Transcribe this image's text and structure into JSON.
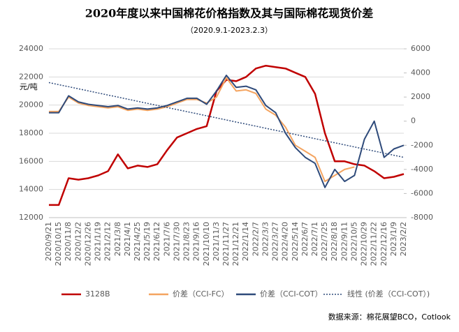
{
  "chart_data": {
    "type": "line",
    "title": "2020年度以来中国棉花价格指数及其与国际棉花现货价差",
    "subtitle": "（2020.9.1-2023.2.3）",
    "y_label": "元/吨",
    "source": "数据来源：棉花展望BCO，Cotlook",
    "categories": [
      "2020/9/21",
      "2020/10/15",
      "2020/11/8",
      "2020/12/2",
      "2020/12/26",
      "2021/1/19",
      "2021/2/12",
      "2021/3/8",
      "2021/4/1",
      "2021/4/25",
      "2021/5/19",
      "2021/6/12",
      "2021/7/6",
      "2021/7/30",
      "2021/8/23",
      "2021/9/16",
      "2021/10/10",
      "2021/11/3",
      "2021/11/27",
      "2021/12/21",
      "2022/1/14",
      "2022/2/7",
      "2022/3/3",
      "2022/3/27",
      "2022/4/20",
      "2022/5/14",
      "2022/6/7",
      "2022/7/1",
      "2022/7/25",
      "2022/8/18",
      "2022/9/11",
      "2022/10/5",
      "2022/10/29",
      "2022/11/22",
      "2022/12/16",
      "2023/1/9",
      "2023/2/2"
    ],
    "series": [
      {
        "name": "3128B",
        "color": "#c00000",
        "axis": "y",
        "dash": false,
        "values": [
          12900,
          12900,
          14800,
          14700,
          14800,
          15000,
          15300,
          16500,
          15500,
          15700,
          15600,
          15800,
          16800,
          17700,
          18000,
          18300,
          18500,
          21000,
          21800,
          21700,
          22000,
          22600,
          22800,
          22700,
          22600,
          22300,
          22000,
          20800,
          18000,
          16000,
          16000,
          15800,
          15700,
          15300,
          14800,
          14900,
          15100
        ]
      },
      {
        "name": "价差（CCI-FC）",
        "color": "#f4a460",
        "axis": "y2",
        "dash": false,
        "values": [
          800,
          800,
          2000,
          1500,
          1300,
          1200,
          1100,
          1200,
          900,
          1000,
          900,
          1000,
          1200,
          1500,
          1800,
          1800,
          1500,
          2000,
          3600,
          2500,
          2600,
          2300,
          1000,
          500,
          -500,
          -2000,
          -2500,
          -3000,
          -5000,
          -4500,
          -4000,
          -3800,
          null,
          null,
          null,
          null,
          null
        ]
      },
      {
        "name": "价差（CCI-COT）",
        "color": "#2e4a7a",
        "axis": "y2",
        "dash": false,
        "values": [
          700,
          700,
          2100,
          1600,
          1400,
          1300,
          1200,
          1300,
          1000,
          1100,
          1000,
          1100,
          1300,
          1600,
          1900,
          1900,
          1400,
          2500,
          3800,
          2800,
          2900,
          2600,
          1300,
          700,
          -1000,
          -2200,
          -3000,
          -3500,
          -5500,
          -4000,
          -5000,
          -4500,
          -1500,
          0,
          -3000,
          -2300,
          -2000
        ]
      },
      {
        "name": "线性 (价差（CCI-COT）)",
        "color": "#2e4a7a",
        "axis": "y2",
        "dash": true,
        "values": [
          3200,
          3028,
          2856,
          2683,
          2511,
          2339,
          2167,
          1994,
          1822,
          1650,
          1478,
          1306,
          1133,
          961,
          789,
          617,
          444,
          272,
          100,
          -72,
          -244,
          -417,
          -589,
          -761,
          -933,
          -1106,
          -1278,
          -1450,
          -1622,
          -1794,
          -1967,
          -2139,
          -2311,
          -2483,
          -2656,
          -2828,
          -3000
        ]
      }
    ],
    "ylim": [
      12000,
      24000
    ],
    "yticks": [
      12000,
      14000,
      16000,
      18000,
      20000,
      22000,
      24000
    ],
    "y2lim": [
      -8000,
      6000
    ],
    "y2ticks": [
      -8000,
      -6000,
      -4000,
      -2000,
      0,
      2000,
      4000,
      6000
    ],
    "grid": true
  }
}
